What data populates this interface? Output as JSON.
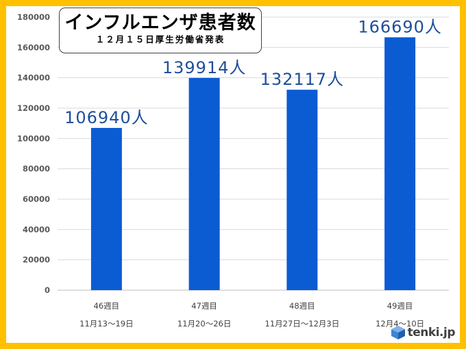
{
  "title": {
    "main": "インフルエンザ患者数",
    "sub": "１２月１５日厚生労働省発表"
  },
  "logo": {
    "text": "tenki.jp"
  },
  "colors": {
    "frame": "#ffc000",
    "bar": "#0b5bd3",
    "data_label": "#1f4e9c",
    "grid": "#d9d9d9"
  },
  "chart_data": {
    "type": "bar",
    "categories": [
      "46週目",
      "47週目",
      "48週目",
      "49週目"
    ],
    "category_dates": [
      "11月13〜19日",
      "11月20〜26日",
      "11月27日〜12月3日",
      "12月4〜10日"
    ],
    "values": [
      106940,
      139914,
      132117,
      166690
    ],
    "data_labels": [
      "106940人",
      "139914人",
      "132117人",
      "166690人"
    ],
    "ylim": [
      0,
      180000
    ],
    "yticks": [
      0,
      20000,
      40000,
      60000,
      80000,
      100000,
      120000,
      140000,
      160000,
      180000
    ],
    "grid": true,
    "legend": "none",
    "xlabel": "",
    "ylabel": ""
  }
}
